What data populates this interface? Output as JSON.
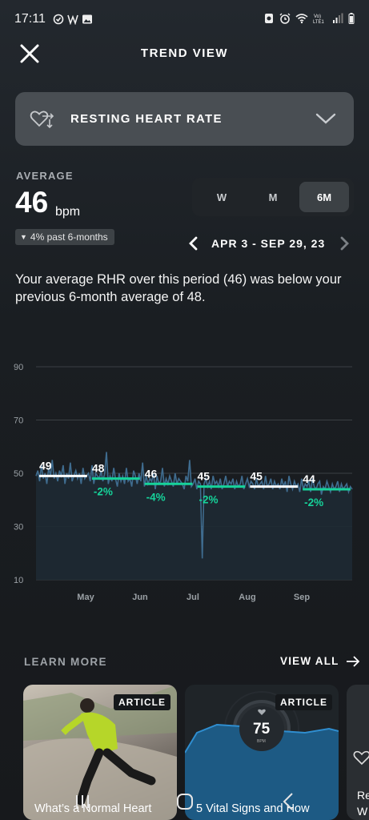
{
  "status_bar": {
    "time": "17:11",
    "left_icons": [
      "check-circle-icon",
      "w-app-icon",
      "image-icon"
    ],
    "right_icons": [
      "alarm-app-icon",
      "alarm-clock-icon",
      "wifi-icon",
      "volte-icon",
      "signal-icon",
      "battery-icon"
    ],
    "volte_text": "Vo)\nLTE1"
  },
  "header": {
    "title": "TREND VIEW",
    "close_icon": "close-icon"
  },
  "metric_selector": {
    "label": "RESTING HEART RATE",
    "icon": "heart-trend-icon",
    "chevron": "chevron-down-icon"
  },
  "summary_stats": {
    "average_label": "AVERAGE",
    "average_value": "46",
    "unit": "bpm",
    "change_text": "4% past 6-months",
    "change_direction": "down"
  },
  "period_toggle": {
    "options": [
      "W",
      "M",
      "6M"
    ],
    "selected": "6M"
  },
  "date_nav": {
    "range": "APR 3 - SEP 29, 23"
  },
  "summary_text": "Your average RHR over this period (46) was below your previous 6-month average of 48.",
  "chart_data": {
    "type": "line",
    "y_ticks": [
      10,
      30,
      50,
      70,
      90
    ],
    "ylim": [
      10,
      90
    ],
    "x_labels": [
      "May",
      "Jun",
      "Jul",
      "Aug",
      "Sep"
    ],
    "monthly_averages": [
      {
        "value": 49,
        "change": null,
        "color": "#ffffff"
      },
      {
        "value": 48,
        "change": "-2%",
        "color": "#16d39a"
      },
      {
        "value": 46,
        "change": "-4%",
        "color": "#16d39a"
      },
      {
        "value": 45,
        "change": "-2%",
        "color": "#16d39a"
      },
      {
        "value": 45,
        "change": null,
        "color": "#ffffff"
      },
      {
        "value": 44,
        "change": "-2%",
        "color": "#16d39a"
      }
    ],
    "daily_series": [
      49,
      51,
      47,
      53,
      48,
      50,
      46,
      52,
      49,
      55,
      48,
      50,
      47,
      51,
      49,
      53,
      46,
      50,
      48,
      54,
      47,
      49,
      51,
      48,
      50,
      46,
      52,
      48,
      49,
      50,
      47,
      53,
      46,
      50,
      49,
      48,
      51,
      47,
      50,
      58,
      46,
      49,
      47,
      52,
      48,
      45,
      50,
      47,
      49,
      46,
      52,
      47,
      48,
      45,
      51,
      49,
      46,
      50,
      47,
      54,
      45,
      49,
      46,
      48,
      47,
      50,
      44,
      49,
      46,
      47,
      52,
      45,
      48,
      46,
      49,
      47,
      45,
      50,
      46,
      48,
      47,
      46,
      44,
      49,
      47,
      55,
      45,
      46,
      48,
      44,
      47,
      46,
      18,
      46,
      48,
      45,
      47,
      44,
      49,
      46,
      47,
      45,
      48,
      44,
      46,
      49,
      45,
      47,
      46,
      48,
      44,
      47,
      45,
      46,
      49,
      44,
      46,
      48,
      45,
      47,
      46,
      44,
      48,
      45,
      46,
      47,
      44,
      49,
      45,
      46,
      48,
      44,
      47,
      45,
      46,
      44,
      48,
      45,
      47,
      43,
      49,
      46,
      44,
      47,
      45,
      46,
      43,
      48,
      44,
      46,
      45,
      47,
      43,
      48,
      45,
      44,
      46,
      47,
      42,
      45,
      44,
      47,
      45,
      43,
      46,
      44,
      45,
      47,
      43,
      46,
      44,
      45,
      46,
      43,
      45,
      44
    ],
    "colors": {
      "line": "#3f6c8f",
      "area": "#1e2a33",
      "good": "#16d39a",
      "neutral": "#ffffff",
      "grid": "#3a3f44"
    }
  },
  "learn_more": {
    "label": "LEARN MORE",
    "view_all": "VIEW ALL",
    "cards": [
      {
        "tag": "ARTICLE",
        "title": "What’s a Normal Heart"
      },
      {
        "tag": "ARTICLE",
        "title": "5 Vital Signs and How",
        "gauge_value": "75",
        "gauge_unit": "BPM"
      },
      {
        "tag": "",
        "title": "Re\nW"
      }
    ]
  },
  "nav_bar": {
    "buttons": [
      "recent-apps-icon",
      "home-icon",
      "back-icon"
    ]
  }
}
